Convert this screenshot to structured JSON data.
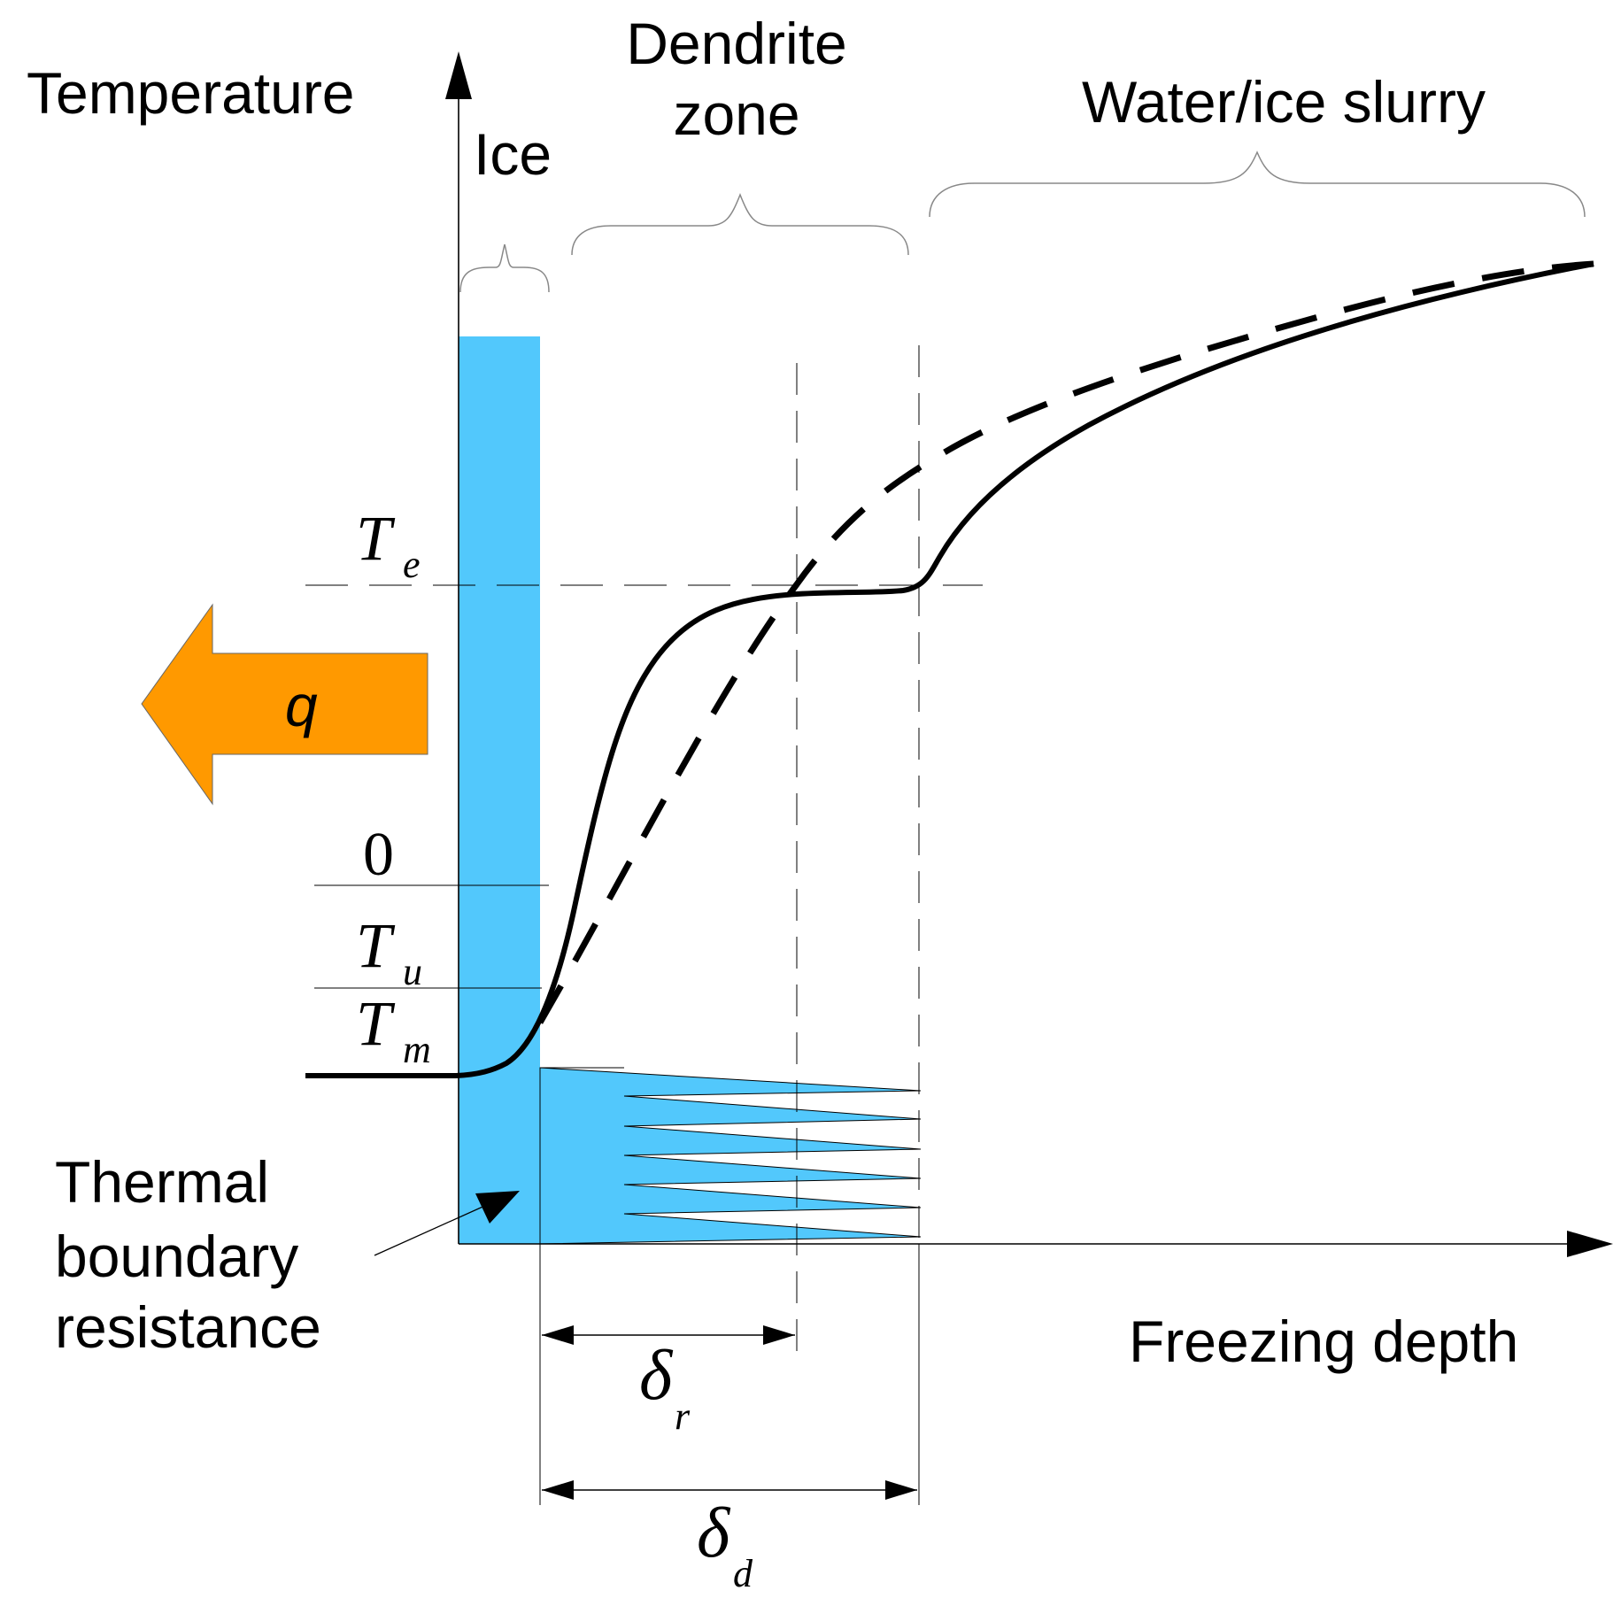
{
  "labels": {
    "temperature": "Temperature",
    "freezing_depth": "Freezing depth",
    "ice": "Ice",
    "dendrite_zone_line1": "Dendrite",
    "dendrite_zone_line2": "zone",
    "slurry": "Water/ice slurry",
    "thermal_line1": "Thermal",
    "thermal_line2": "boundary",
    "thermal_line3": "resistance",
    "heat_flux": "q"
  },
  "temperature_marks": {
    "te_main": "T",
    "te_sub": "e",
    "zero": "0",
    "tu_main": "T",
    "tu_sub": "u",
    "tm_main": "T",
    "tm_sub": "m"
  },
  "depth_marks": {
    "delta_r_main": "δ",
    "delta_r_sub": "r",
    "delta_d_main": "δ",
    "delta_d_sub": "d"
  },
  "colors": {
    "ice": "#52c8fc",
    "arrow": "#ff9900",
    "line": "#000000"
  }
}
